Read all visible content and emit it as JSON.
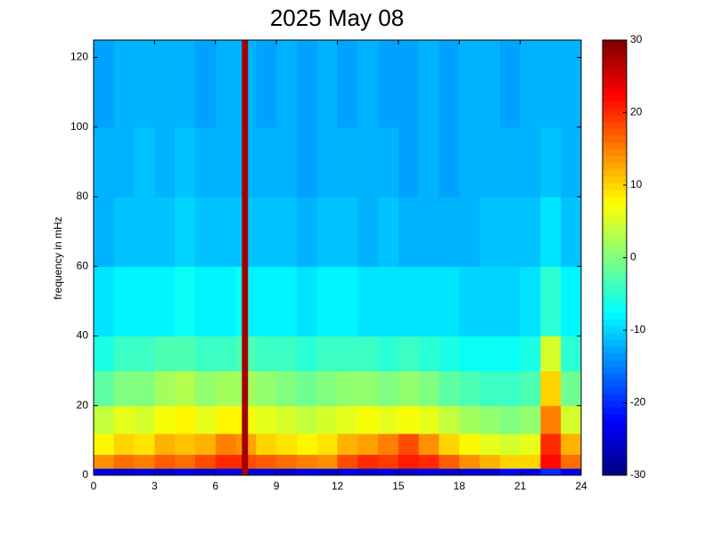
{
  "chart_data": {
    "type": "heatmap",
    "colormap": "jet",
    "title": "2025 May 08",
    "ylabel": "frequency in mHz",
    "xlim": [
      0,
      24
    ],
    "xticks": [
      0,
      3,
      6,
      9,
      12,
      15,
      18,
      21,
      24
    ],
    "ylim": [
      0,
      125
    ],
    "yticks": [
      0,
      20,
      40,
      60,
      80,
      100,
      120
    ],
    "zlim": [
      -30,
      30
    ],
    "zticks": [
      -30,
      -20,
      -10,
      0,
      10,
      20,
      30
    ],
    "x_edges": [
      0,
      1,
      2,
      3,
      4,
      5,
      6,
      7,
      7.3,
      7.6,
      8,
      9,
      10,
      11,
      12,
      13,
      14,
      15,
      16,
      17,
      18,
      19,
      20,
      21,
      22,
      23,
      24
    ],
    "y_edges": [
      0,
      2,
      6,
      12,
      20,
      30,
      40,
      60,
      80,
      100,
      125
    ],
    "z": [
      [
        -24,
        -25,
        -24,
        -25,
        -24,
        -25,
        -24,
        -25,
        28,
        -25,
        -24,
        -25,
        -24,
        -25,
        -24,
        -25,
        -24,
        -25,
        -24,
        -25,
        -24,
        -25,
        -22,
        -24,
        -20,
        -24
      ],
      [
        14,
        16,
        15,
        17,
        16,
        18,
        20,
        20,
        28,
        18,
        17,
        16,
        15,
        14,
        18,
        20,
        19,
        21,
        20,
        17,
        14,
        12,
        10,
        10,
        22,
        16
      ],
      [
        8,
        10,
        9,
        12,
        11,
        12,
        15,
        14,
        28,
        13,
        10,
        9,
        8,
        9,
        12,
        13,
        15,
        18,
        14,
        10,
        8,
        6,
        5,
        6,
        20,
        12
      ],
      [
        4,
        6,
        5,
        7,
        8,
        6,
        8,
        8,
        28,
        7,
        6,
        5,
        4,
        5,
        6,
        7,
        6,
        7,
        6,
        4,
        2,
        1,
        0,
        1,
        15,
        5
      ],
      [
        -2,
        0,
        0,
        2,
        3,
        1,
        2,
        2,
        28,
        2,
        1,
        0,
        -1,
        0,
        1,
        1,
        0,
        1,
        0,
        -2,
        -3,
        -4,
        -4,
        -3,
        10,
        -1
      ],
      [
        -6,
        -4,
        -4,
        -3,
        -3,
        -4,
        -4,
        -3,
        28,
        -3,
        -4,
        -4,
        -5,
        -4,
        -4,
        -4,
        -5,
        -4,
        -5,
        -6,
        -7,
        -7,
        -7,
        -6,
        5,
        -5
      ],
      [
        -9,
        -8,
        -8,
        -8,
        -7,
        -8,
        -8,
        -7,
        28,
        -8,
        -8,
        -8,
        -9,
        -8,
        -8,
        -9,
        -9,
        -9,
        -9,
        -9,
        -10,
        -10,
        -10,
        -9,
        -5,
        -8
      ],
      [
        -12,
        -11,
        -11,
        -11,
        -10,
        -11,
        -11,
        -11,
        28,
        -11,
        -11,
        -11,
        -12,
        -11,
        -11,
        -12,
        -11,
        -12,
        -12,
        -12,
        -12,
        -11,
        -11,
        -11,
        -9,
        -11
      ],
      [
        -12,
        -12,
        -11,
        -12,
        -11,
        -12,
        -12,
        -12,
        28,
        -12,
        -12,
        -12,
        -13,
        -12,
        -12,
        -12,
        -12,
        -13,
        -12,
        -13,
        -12,
        -12,
        -12,
        -12,
        -11,
        -12
      ],
      [
        -13,
        -12,
        -12,
        -12,
        -12,
        -13,
        -12,
        -12,
        28,
        -12,
        -13,
        -12,
        -13,
        -12,
        -13,
        -12,
        -13,
        -13,
        -12,
        -13,
        -12,
        -12,
        -13,
        -12,
        -12,
        -12
      ]
    ]
  }
}
